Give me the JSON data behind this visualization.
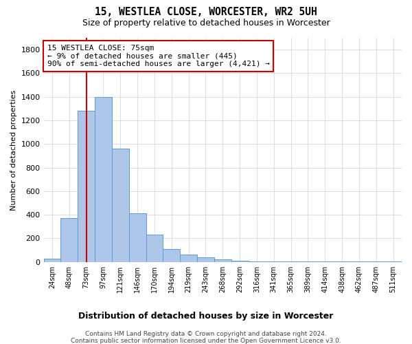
{
  "title1": "15, WESTLEA CLOSE, WORCESTER, WR2 5UH",
  "title2": "Size of property relative to detached houses in Worcester",
  "xlabel": "Distribution of detached houses by size in Worcester",
  "ylabel": "Number of detached properties",
  "footnote1": "Contains HM Land Registry data © Crown copyright and database right 2024.",
  "footnote2": "Contains public sector information licensed under the Open Government Licence v3.0.",
  "annotation_line1": "15 WESTLEA CLOSE: 75sqm",
  "annotation_line2": "← 9% of detached houses are smaller (445)",
  "annotation_line3": "90% of semi-detached houses are larger (4,421) →",
  "bar_color": "#aec6e8",
  "bar_edge_color": "#5b9bd5",
  "vline_color": "#cc0000",
  "bin_labels": [
    "24sqm",
    "48sqm",
    "73sqm",
    "97sqm",
    "121sqm",
    "146sqm",
    "170sqm",
    "194sqm",
    "219sqm",
    "243sqm",
    "268sqm",
    "292sqm",
    "316sqm",
    "341sqm",
    "365sqm",
    "389sqm",
    "414sqm",
    "438sqm",
    "462sqm",
    "487sqm",
    "511sqm"
  ],
  "bar_heights": [
    30,
    370,
    1280,
    1400,
    960,
    410,
    230,
    110,
    65,
    40,
    20,
    10,
    5,
    3,
    2,
    2,
    2,
    2,
    2,
    2,
    2
  ],
  "vline_x": 2.0,
  "ylim": [
    0,
    1900
  ],
  "yticks": [
    0,
    200,
    400,
    600,
    800,
    1000,
    1200,
    1400,
    1600,
    1800
  ],
  "background_color": "#ffffff",
  "grid_color": "#d0d0d0"
}
